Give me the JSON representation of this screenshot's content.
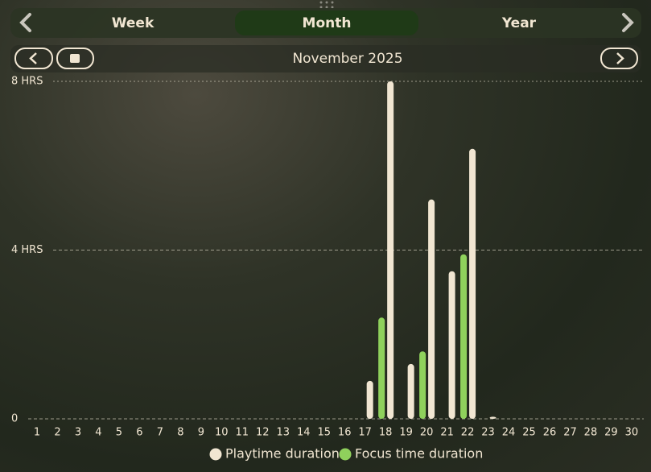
{
  "tabs": [
    "Week",
    "Month",
    "Year"
  ],
  "header": {
    "period": "November 2025"
  },
  "chart_data": {
    "type": "bar",
    "categories": [
      "1",
      "2",
      "3",
      "4",
      "5",
      "6",
      "7",
      "8",
      "9",
      "10",
      "11",
      "12",
      "13",
      "14",
      "15",
      "16",
      "17",
      "18",
      "19",
      "20",
      "21",
      "22",
      "23",
      "24",
      "25",
      "26",
      "27",
      "28",
      "29",
      "30"
    ],
    "series": [
      {
        "name": "Playtime duration",
        "color": "#f1e6d2",
        "values": [
          0,
          0,
          0,
          0,
          0,
          0,
          0,
          0,
          0,
          0,
          0,
          0,
          0,
          0,
          0,
          0,
          0.9,
          8.0,
          1.3,
          5.2,
          3.5,
          6.4,
          0.05,
          0,
          0,
          0,
          0,
          0,
          0,
          0
        ]
      },
      {
        "name": "Focus time duration",
        "color": "#8fd15c",
        "values": [
          0,
          0,
          0,
          0,
          0,
          0,
          0,
          0,
          0,
          0,
          0,
          0,
          0,
          0,
          0,
          0,
          0,
          2.4,
          0,
          1.6,
          0,
          3.9,
          0,
          0,
          0,
          0,
          0,
          0,
          0,
          0
        ]
      }
    ],
    "ylim": [
      0,
      8
    ],
    "yticks": [
      0,
      {
        "value": 4,
        "label": "4 HRS"
      },
      {
        "value": 8,
        "label": "8 HRS"
      }
    ],
    "grid": true
  }
}
